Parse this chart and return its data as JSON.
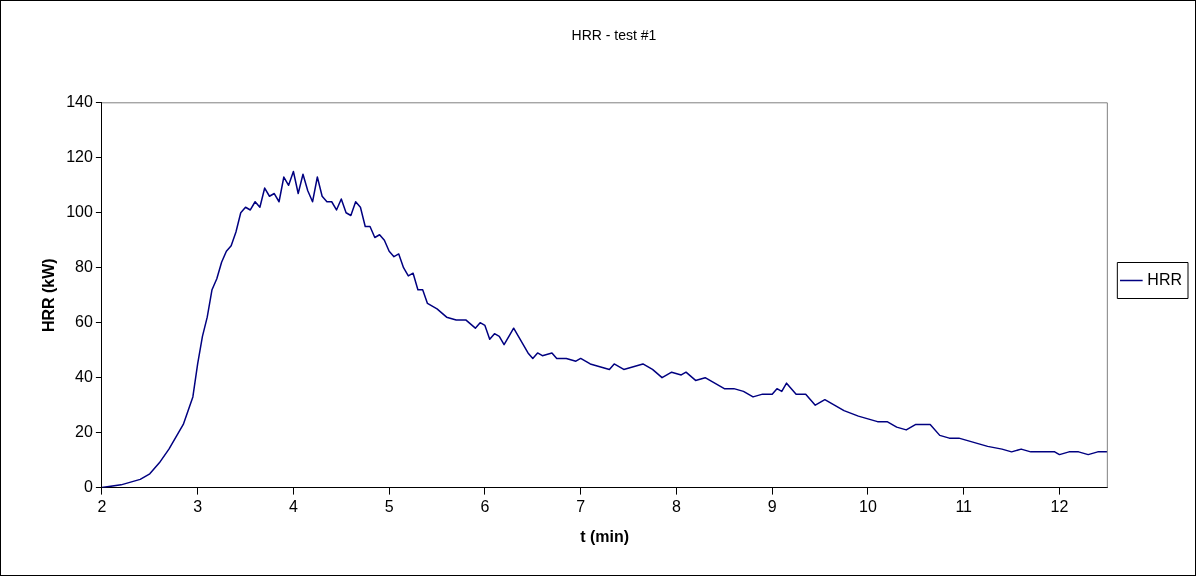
{
  "chart_data": {
    "type": "line",
    "title": "HRR - test #1",
    "xlabel": "t (min)",
    "ylabel": "HRR (kW)",
    "xlim": [
      2,
      12.5
    ],
    "xticks": [
      2,
      3,
      4,
      5,
      6,
      7,
      8,
      9,
      10,
      11,
      12
    ],
    "ylim": [
      0,
      140
    ],
    "yticks": [
      0,
      20,
      40,
      60,
      80,
      100,
      120,
      140
    ],
    "grid": false,
    "legend": "right",
    "marker": "none",
    "series": [
      {
        "name": "HRR",
        "color": "#000080",
        "x": [
          2.0,
          2.2,
          2.4,
          2.5,
          2.6,
          2.7,
          2.8,
          2.85,
          2.9,
          2.95,
          3.0,
          3.05,
          3.1,
          3.15,
          3.2,
          3.25,
          3.3,
          3.35,
          3.4,
          3.45,
          3.5,
          3.55,
          3.6,
          3.65,
          3.7,
          3.75,
          3.8,
          3.85,
          3.9,
          3.95,
          4.0,
          4.05,
          4.1,
          4.15,
          4.2,
          4.25,
          4.3,
          4.35,
          4.4,
          4.45,
          4.5,
          4.55,
          4.6,
          4.65,
          4.7,
          4.75,
          4.8,
          4.85,
          4.9,
          4.95,
          5.0,
          5.05,
          5.1,
          5.15,
          5.2,
          5.25,
          5.3,
          5.35,
          5.4,
          5.5,
          5.6,
          5.7,
          5.8,
          5.9,
          5.95,
          6.0,
          6.05,
          6.1,
          6.15,
          6.2,
          6.3,
          6.35,
          6.45,
          6.5,
          6.55,
          6.6,
          6.7,
          6.75,
          6.85,
          6.95,
          7.0,
          7.1,
          7.2,
          7.3,
          7.35,
          7.45,
          7.55,
          7.65,
          7.75,
          7.85,
          7.95,
          8.05,
          8.1,
          8.2,
          8.3,
          8.4,
          8.5,
          8.6,
          8.7,
          8.8,
          8.9,
          9.0,
          9.05,
          9.1,
          9.15,
          9.25,
          9.35,
          9.45,
          9.55,
          9.65,
          9.75,
          9.9,
          10.0,
          10.1,
          10.2,
          10.3,
          10.4,
          10.5,
          10.65,
          10.75,
          10.85,
          10.95,
          11.05,
          11.15,
          11.25,
          11.4,
          11.5,
          11.6,
          11.7,
          11.8,
          11.95,
          12.0,
          12.1,
          12.2,
          12.3,
          12.4,
          12.5
        ],
        "values": [
          0,
          1,
          3,
          5,
          9,
          14,
          20,
          23,
          28,
          33,
          45,
          55,
          62,
          72,
          76,
          82,
          86,
          88,
          93,
          100,
          102,
          101,
          104,
          102,
          109,
          106,
          107,
          104,
          113,
          110,
          115,
          107,
          114,
          108,
          104,
          113,
          106,
          104,
          104,
          101,
          105,
          100,
          99,
          104,
          102,
          95,
          95,
          91,
          92,
          90,
          86,
          84,
          85,
          80,
          77,
          78,
          72,
          72,
          67,
          65,
          62,
          61,
          61,
          58,
          60,
          59,
          54,
          56,
          55,
          52,
          58,
          55,
          49,
          47,
          49,
          48,
          49,
          47,
          47,
          46,
          47,
          45,
          44,
          43,
          45,
          43,
          44,
          45,
          43,
          40,
          42,
          41,
          42,
          39,
          40,
          38,
          36,
          36,
          35,
          33,
          34,
          34,
          36,
          35,
          38,
          34,
          34,
          30,
          32,
          30,
          28,
          26,
          25,
          24,
          24,
          22,
          21,
          23,
          23,
          19,
          18,
          18,
          17,
          16,
          15,
          14,
          13,
          14,
          13,
          13,
          13,
          12,
          13,
          13,
          12,
          13,
          13
        ]
      }
    ]
  }
}
